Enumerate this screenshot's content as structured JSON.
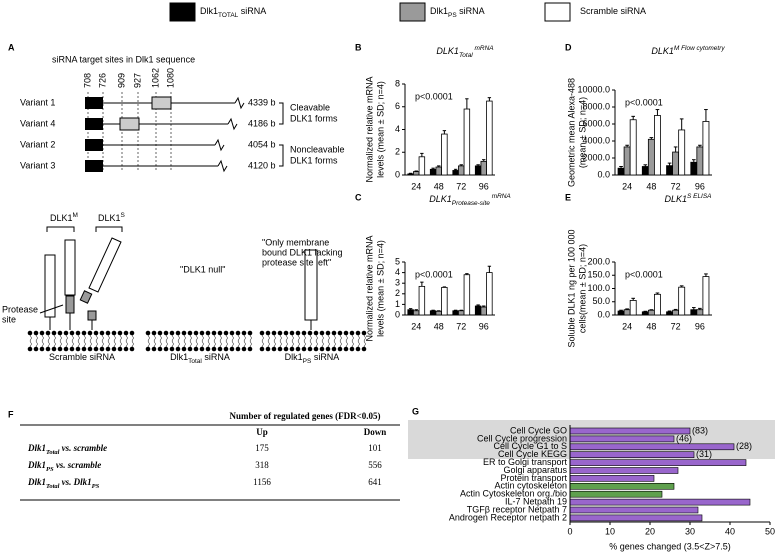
{
  "legend": [
    {
      "parts": [
        {
          "text": "Dlk1"
        },
        {
          "text": "TOTAL",
          "pos": "sub"
        },
        {
          "text": " siRNA"
        }
      ],
      "color": "#000000"
    },
    {
      "parts": [
        {
          "text": "Dlk1"
        },
        {
          "text": "PS",
          "pos": "sub"
        },
        {
          "text": " siRNA"
        }
      ],
      "color": "#9a9a9a"
    },
    {
      "parts": [
        {
          "text": "Scramble siRNA"
        }
      ],
      "color": "#ffffff"
    }
  ],
  "panel_labels": [
    "A",
    "B",
    "C",
    "D",
    "E",
    "F",
    "G"
  ],
  "panel_a": {
    "header": "siRNA target sites in Dlk1 sequence",
    "sites": [
      "708",
      "726",
      "909",
      "927",
      "1062",
      "1080"
    ],
    "variants": [
      {
        "label": "Variant 1",
        "length": "4339 b"
      },
      {
        "label": "Variant 4",
        "length": "4186 b"
      },
      {
        "label": "Variant 2",
        "length": "4054 b"
      },
      {
        "label": "Variant 3",
        "length": "4120 b"
      }
    ],
    "groups": [
      [
        "Cleavable",
        "DLK1 forms"
      ],
      [
        "Noncleavable",
        "DLK1 forms"
      ]
    ],
    "protein_labels": [
      [
        {
          "text": "DLK1"
        },
        {
          "text": "M",
          "pos": "sup"
        }
      ],
      [
        {
          "text": "DLK1"
        },
        {
          "text": "S",
          "pos": "sup"
        }
      ]
    ],
    "protease_label": [
      "Protease",
      "site"
    ],
    "notes": [
      [
        "\"DLK1 null\""
      ],
      [
        "\"Only membrane",
        "bound DLK1 lacking",
        "protease site left\""
      ]
    ],
    "conditions": [
      [
        {
          "text": "Scramble siRNA"
        }
      ],
      [
        {
          "text": "Dlk1"
        },
        {
          "text": "Total",
          "pos": "sub"
        },
        {
          "text": " siRNA"
        }
      ],
      [
        {
          "text": "Dlk1"
        },
        {
          "text": "PS",
          "pos": "sub"
        },
        {
          "text": " siRNA"
        }
      ]
    ]
  },
  "table_f": {
    "title": "Number of regulated genes (FDR<0.05)",
    "columns": [
      "Up",
      "Down"
    ],
    "rows": [
      {
        "label": [
          {
            "text": "Dlk1"
          },
          {
            "text": "Total",
            "pos": "sub"
          },
          {
            "text": " vs. scramble"
          }
        ],
        "cells": [
          "175",
          "101"
        ]
      },
      {
        "label": [
          {
            "text": "Dlk1"
          },
          {
            "text": "PS",
            "pos": "sub"
          },
          {
            "text": " vs. scramble"
          }
        ],
        "cells": [
          "318",
          "556"
        ]
      },
      {
        "label": [
          {
            "text": "Dlk1"
          },
          {
            "text": "Total",
            "pos": "sub"
          },
          {
            "text": " vs. Dlk1"
          },
          {
            "text": "PS",
            "pos": "sub"
          }
        ],
        "cells": [
          "1156",
          "641"
        ]
      }
    ]
  },
  "chart_data": [
    {
      "type": "bar",
      "title": [
        {
          "text": "DLK1"
        },
        {
          "text": "Total",
          "pos": "sub"
        },
        {
          "text": " mRNA",
          "pos": "sup"
        }
      ],
      "ylabel": [
        "Normalized relative mRNA",
        "levels (mean ± SD; n=4)"
      ],
      "annotation": "p<0.0001",
      "categories": [
        "24",
        "48",
        "72",
        "96"
      ],
      "series": [
        {
          "color": "#000000",
          "values": [
            0.1,
            0.5,
            0.4,
            0.8
          ],
          "errors": [
            0.05,
            0.1,
            0.1,
            0.1
          ]
        },
        {
          "color": "#9a9a9a",
          "values": [
            0.3,
            0.7,
            0.8,
            1.2
          ],
          "errors": [
            0.05,
            0.1,
            0.1,
            0.15
          ]
        },
        {
          "color": "#ffffff",
          "values": [
            1.6,
            3.6,
            5.8,
            6.5
          ],
          "errors": [
            0.3,
            0.3,
            0.9,
            0.3
          ]
        }
      ],
      "ylim": [
        0,
        8
      ],
      "yticks": [
        0,
        2,
        4,
        6,
        8
      ]
    },
    {
      "type": "bar",
      "title": [
        {
          "text": "DLK1"
        },
        {
          "text": "Protease-site",
          "pos": "sub"
        },
        {
          "text": " mRNA",
          "pos": "sup"
        }
      ],
      "ylabel": [
        "Normalized relative mRNA",
        "levels (mean ± SD; n=4)"
      ],
      "annotation": "p<0.0001",
      "categories": [
        "24",
        "48",
        "72",
        "96"
      ],
      "series": [
        {
          "color": "#000000",
          "values": [
            0.5,
            0.4,
            0.4,
            0.85
          ],
          "errors": [
            0.1,
            0.05,
            0.05,
            0.1
          ]
        },
        {
          "color": "#9a9a9a",
          "values": [
            0.4,
            0.35,
            0.4,
            0.75
          ],
          "errors": [
            0.1,
            0.05,
            0.05,
            0.1
          ]
        },
        {
          "color": "#ffffff",
          "values": [
            2.7,
            2.6,
            3.8,
            4.0
          ],
          "errors": [
            0.4,
            0.05,
            0.1,
            0.6
          ]
        }
      ],
      "ylim": [
        0,
        5
      ],
      "yticks": [
        0,
        1,
        2,
        3,
        4,
        5
      ]
    },
    {
      "type": "bar",
      "title": [
        {
          "text": "DLK1"
        },
        {
          "text": "M",
          "pos": "sup"
        },
        {
          "text": " Flow cytometry",
          "pos": "sup"
        }
      ],
      "ylabel": [
        "Geometric mean Alexa-488",
        "(mean ± SD; n=4)"
      ],
      "annotation": "p<0.0001",
      "categories": [
        "24",
        "48",
        "72",
        "96"
      ],
      "series": [
        {
          "color": "#000000",
          "values": [
            800,
            1000,
            1100,
            1500
          ],
          "errors": [
            200,
            200,
            300,
            300
          ]
        },
        {
          "color": "#9a9a9a",
          "values": [
            3300,
            4200,
            2700,
            3300
          ],
          "errors": [
            200,
            200,
            600,
            200
          ]
        },
        {
          "color": "#ffffff",
          "values": [
            6500,
            7000,
            5300,
            6300
          ],
          "errors": [
            400,
            700,
            1300,
            1400
          ]
        }
      ],
      "ylim": [
        0,
        10000
      ],
      "yticks": [
        {
          "value": 0,
          "label": "0.0"
        },
        {
          "value": 2000,
          "label": "2000.0"
        },
        {
          "value": 4000,
          "label": "4000.0"
        },
        {
          "value": 6000,
          "label": "6000.0"
        },
        {
          "value": 8000,
          "label": "8000.0"
        },
        {
          "value": 10000,
          "label": "10000.0"
        }
      ]
    },
    {
      "type": "bar",
      "title": [
        {
          "text": "DLK1"
        },
        {
          "text": "S",
          "pos": "sup"
        },
        {
          "text": " ELISA",
          "pos": "sup"
        }
      ],
      "ylabel": [
        "Soluble DLK1 ng per 100 000",
        "cells(mean ± SD; n=4)"
      ],
      "annotation": "p<0.0001",
      "categories": [
        "24",
        "48",
        "72",
        "96"
      ],
      "series": [
        {
          "color": "#000000",
          "values": [
            15,
            12,
            12,
            20
          ],
          "errors": [
            3,
            2,
            3,
            8
          ]
        },
        {
          "color": "#9a9a9a",
          "values": [
            20,
            18,
            18,
            20
          ],
          "errors": [
            3,
            2,
            3,
            5
          ]
        },
        {
          "color": "#ffffff",
          "values": [
            55,
            78,
            105,
            145
          ],
          "errors": [
            8,
            5,
            5,
            10
          ]
        }
      ],
      "ylim": [
        0,
        200
      ],
      "yticks": [
        {
          "value": 0,
          "label": "0.0"
        },
        {
          "value": 50,
          "label": "50.0"
        },
        {
          "value": 100,
          "label": "100.0"
        },
        {
          "value": 150,
          "label": "150.0"
        },
        {
          "value": 200,
          "label": "200.0"
        }
      ]
    },
    {
      "type": "barh",
      "xlabel": "% genes changed (3.5<Z>7.5)",
      "categories": [
        "Cell Cycle GO",
        "Cell Cycle progression",
        "Cell Cycle G1 to S",
        "Cell Cycle KEGG",
        "ER to Golgi transport",
        "Golgi apparatus",
        "Protein transport",
        "Actin cytoskeleton",
        "Actin Cytoskeleton org./bio",
        "IL-7 Netpath 19",
        "TGFβ receptor Netpath 7",
        "Androgen Receptor netpath 2"
      ],
      "values": [
        30,
        26,
        41,
        31,
        44,
        27,
        21,
        26,
        23,
        45,
        32,
        33
      ],
      "colors": [
        "#9966cc",
        "#9966cc",
        "#9966cc",
        "#9966cc",
        "#9966cc",
        "#9966cc",
        "#9966cc",
        "#5fa04e",
        "#5fa04e",
        "#9966cc",
        "#9966cc",
        "#9966cc"
      ],
      "notes": [
        "(83)",
        "(46)",
        "(28)",
        "(31)"
      ],
      "xlim": [
        0,
        50
      ],
      "xticks": [
        0,
        10,
        20,
        30,
        40,
        50
      ]
    }
  ]
}
